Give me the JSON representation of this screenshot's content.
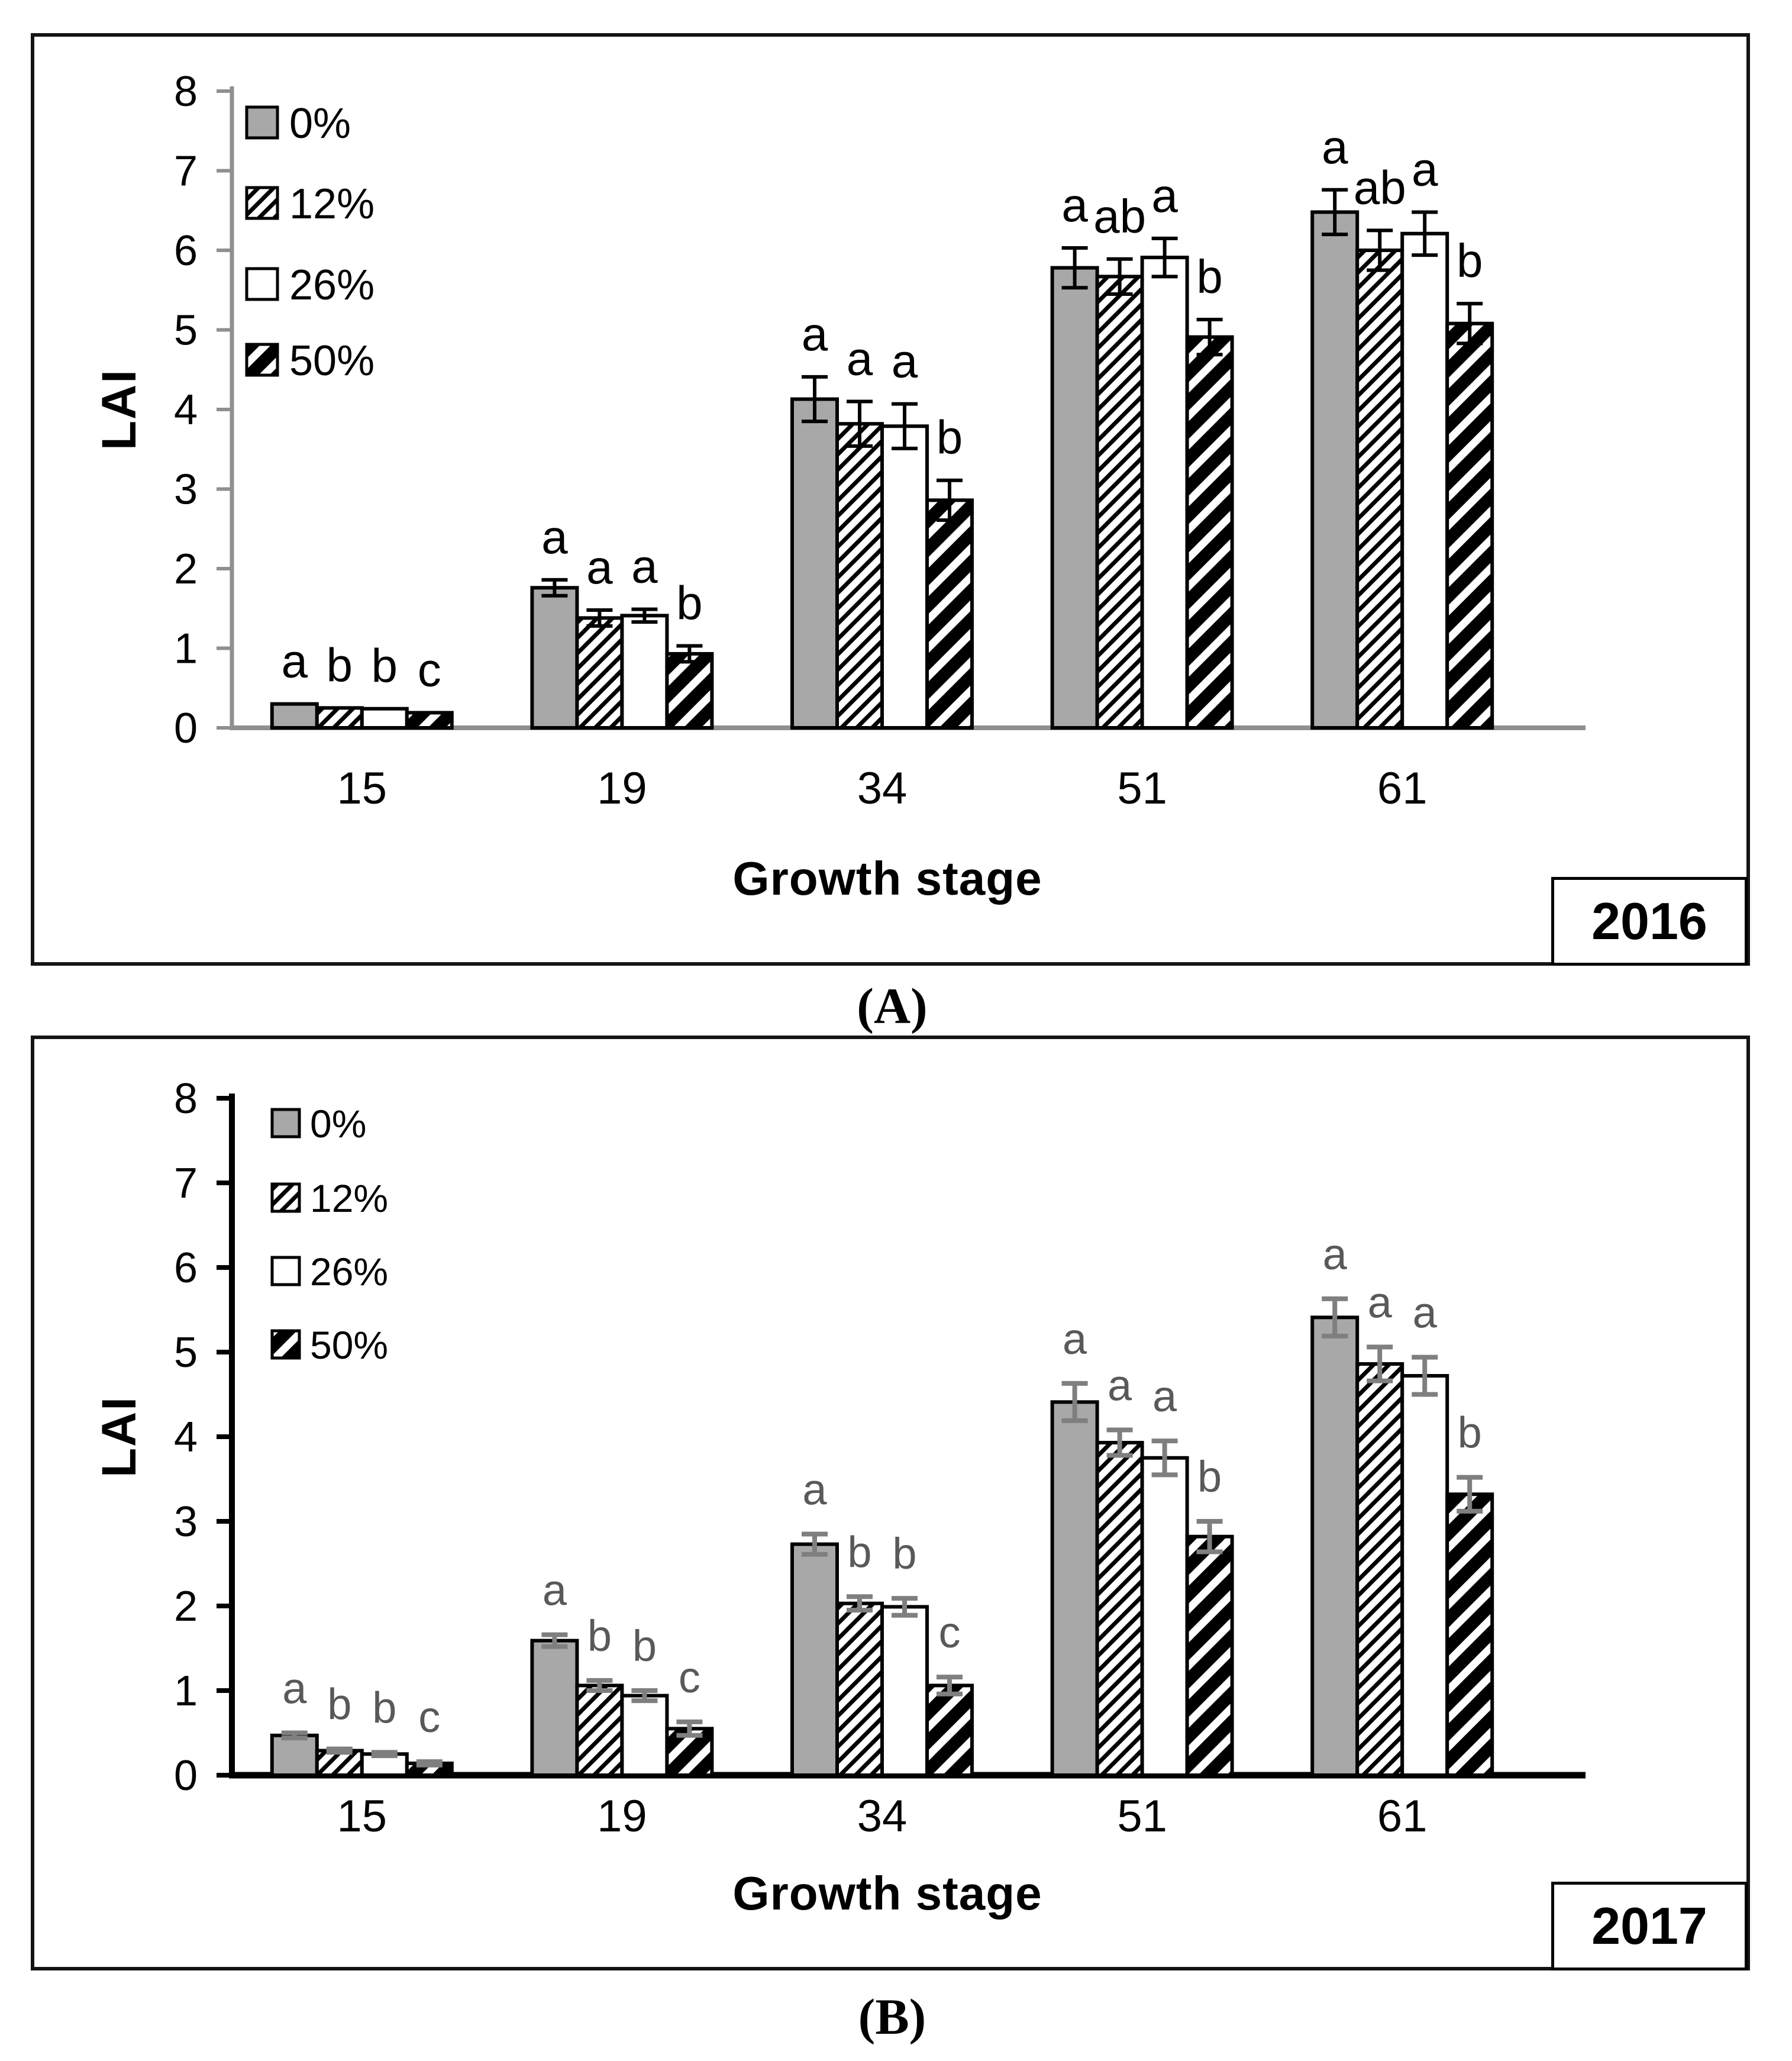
{
  "figure": {
    "background": "#ffffff",
    "bar_fill_gray": "#a8a8a8",
    "bar_outline": "#000000"
  },
  "chart_data": [
    {
      "type": "bar",
      "panel": "A",
      "caption": "(A)",
      "year_label": "2016",
      "xlabel": "Growth stage",
      "ylabel": "LAI",
      "categories": [
        "15",
        "19",
        "34",
        "51",
        "61"
      ],
      "y_ticks": [
        "0",
        "1",
        "2",
        "3",
        "4",
        "5",
        "6",
        "7",
        "8"
      ],
      "ylim": [
        0,
        8
      ],
      "grid": false,
      "legend_position": "upper-left-inside",
      "legend_entries": [
        "0%",
        "12%",
        "26%",
        "50%"
      ],
      "series": [
        {
          "name": "0%",
          "fill": "gray",
          "values": [
            0.3,
            1.76,
            4.13,
            5.78,
            6.48
          ],
          "errors": [
            0,
            0.1,
            0.28,
            0.25,
            0.28
          ],
          "letters": [
            "a",
            "a",
            "a",
            "a",
            "a"
          ]
        },
        {
          "name": "12%",
          "fill": "hatch-thin",
          "values": [
            0.25,
            1.38,
            3.82,
            5.67,
            6.0
          ],
          "errors": [
            0,
            0.1,
            0.28,
            0.22,
            0.25
          ],
          "letters": [
            "b",
            "a",
            "a",
            "ab",
            "ab"
          ]
        },
        {
          "name": "26%",
          "fill": "white",
          "values": [
            0.24,
            1.41,
            3.79,
            5.91,
            6.21
          ],
          "errors": [
            0,
            0.08,
            0.28,
            0.24,
            0.27
          ],
          "letters": [
            "b",
            "a",
            "a",
            "a",
            "a"
          ]
        },
        {
          "name": "50%",
          "fill": "hatch-thick",
          "values": [
            0.19,
            0.93,
            2.86,
            4.91,
            5.08
          ],
          "errors": [
            0,
            0.1,
            0.25,
            0.22,
            0.25
          ],
          "letters": [
            "c",
            "b",
            "b",
            "b",
            "b"
          ]
        }
      ],
      "colors": {
        "axis": "#8f8f8f",
        "error_bars": "#000000",
        "letters": "#000000",
        "tick_labels": "#000000"
      }
    },
    {
      "type": "bar",
      "panel": "B",
      "caption": "(B)",
      "year_label": "2017",
      "xlabel": "Growth stage",
      "ylabel": "LAI",
      "categories": [
        "15",
        "19",
        "34",
        "51",
        "61"
      ],
      "y_ticks": [
        "0",
        "1",
        "2",
        "3",
        "4",
        "5",
        "6",
        "7",
        "8"
      ],
      "ylim": [
        0,
        8
      ],
      "grid": false,
      "legend_position": "upper-left-inside",
      "legend_entries": [
        "0%",
        "12%",
        "26%",
        "50%"
      ],
      "series": [
        {
          "name": "0%",
          "fill": "gray",
          "values": [
            0.47,
            1.59,
            2.73,
            4.41,
            5.41
          ],
          "errors": [
            0.03,
            0.07,
            0.12,
            0.22,
            0.22
          ],
          "letters": [
            "a",
            "a",
            "a",
            "a",
            "a"
          ]
        },
        {
          "name": "12%",
          "fill": "hatch-thin",
          "values": [
            0.29,
            1.06,
            2.03,
            3.93,
            4.86
          ],
          "errors": [
            0.02,
            0.06,
            0.08,
            0.15,
            0.2
          ],
          "letters": [
            "b",
            "b",
            "b",
            "a",
            "a"
          ]
        },
        {
          "name": "26%",
          "fill": "white",
          "values": [
            0.25,
            0.94,
            1.99,
            3.75,
            4.72
          ],
          "errors": [
            0.02,
            0.06,
            0.1,
            0.2,
            0.22
          ],
          "letters": [
            "b",
            "b",
            "b",
            "a",
            "a"
          ]
        },
        {
          "name": "50%",
          "fill": "hatch-thick",
          "values": [
            0.14,
            0.55,
            1.06,
            2.82,
            3.32
          ],
          "errors": [
            0.02,
            0.08,
            0.1,
            0.18,
            0.2
          ],
          "letters": [
            "c",
            "c",
            "c",
            "b",
            "b"
          ]
        }
      ],
      "colors": {
        "axis": "#000000",
        "error_bars": "#7f7f7f",
        "letters": "#595959",
        "tick_labels": "#000000"
      }
    }
  ]
}
